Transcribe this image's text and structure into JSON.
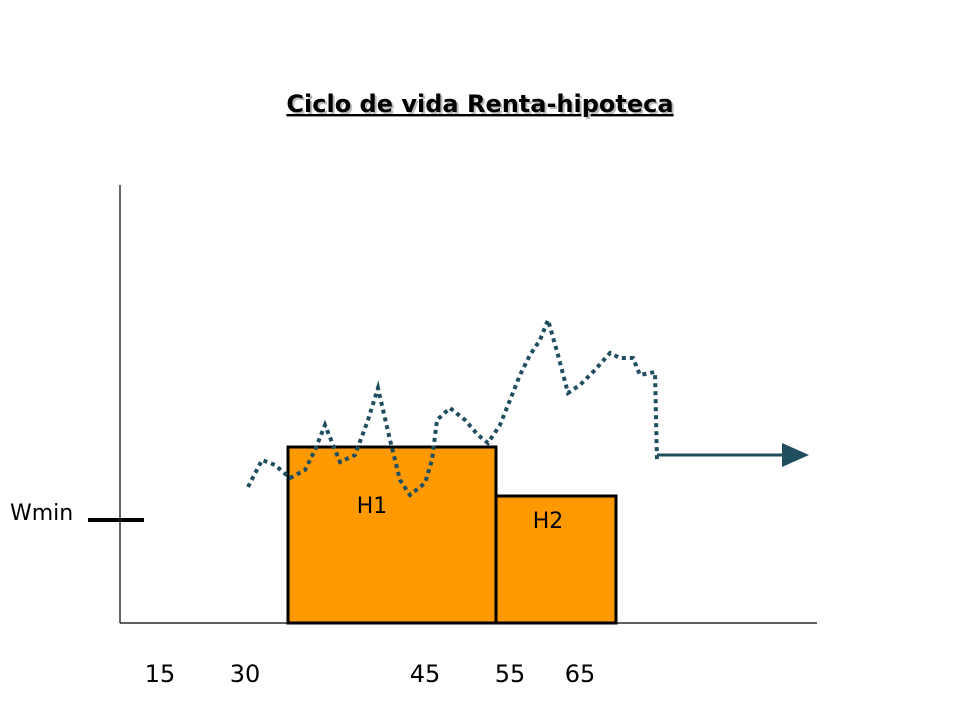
{
  "title": "Ciclo de vida Renta-hipoteca",
  "axis_labels": [
    "15",
    "30",
    "45",
    "55",
    "65"
  ],
  "boxes": [
    {
      "label": "H1"
    },
    {
      "label": "H2"
    }
  ],
  "wmin_label": "Wmin"
}
